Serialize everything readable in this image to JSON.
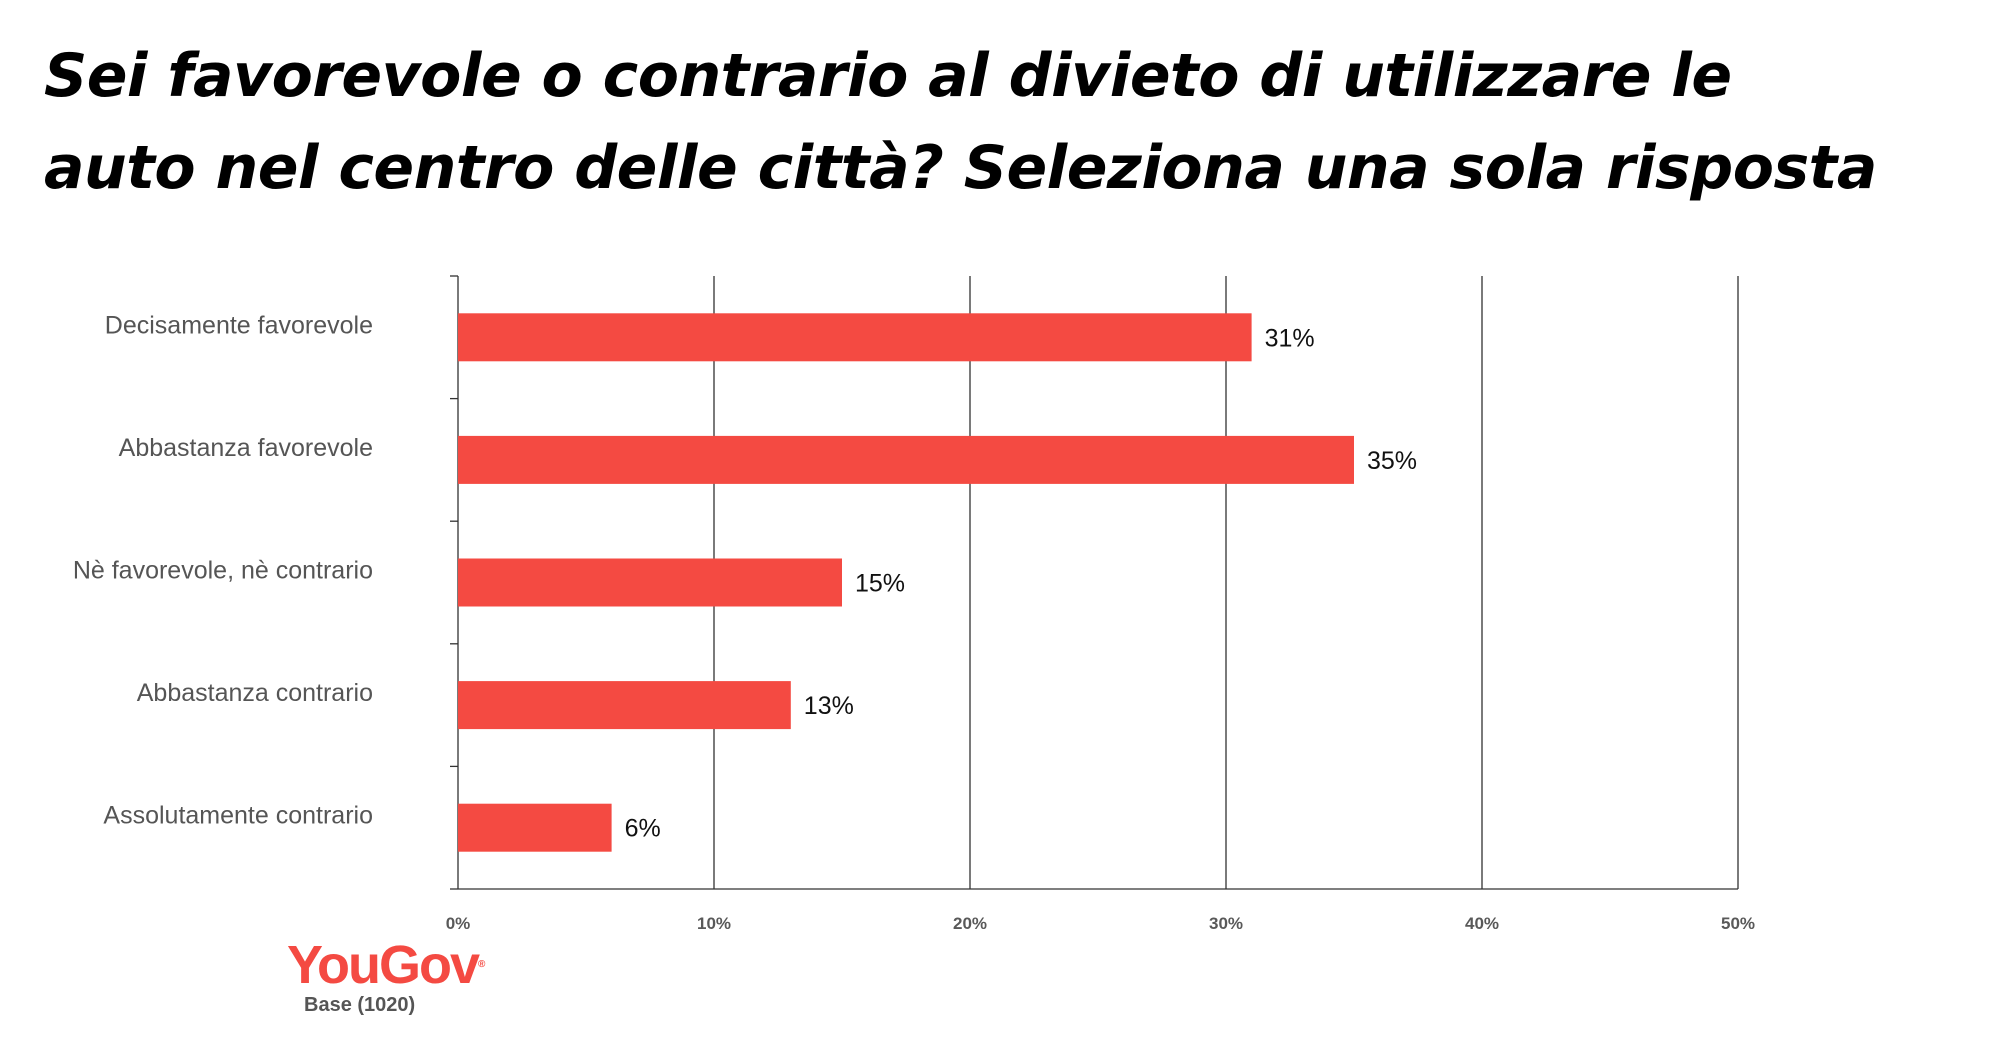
{
  "title_lines": [
    "Sei favorevole o contrario al divieto di utilizzare le",
    "auto nel centro delle città? Seleziona una sola risposta"
  ],
  "brand": {
    "logo_text": "YouGov",
    "base_label": "Base (1020)",
    "color": "#f44a42"
  },
  "chart_data": {
    "type": "bar",
    "orientation": "horizontal",
    "categories": [
      "Decisamente favorevole",
      "Abbastanza favorevole",
      "Nè favorevole, nè contrario",
      "Abbastanza contrario",
      "Assolutamente contrario"
    ],
    "values": [
      31,
      35,
      15,
      13,
      6
    ],
    "data_labels": [
      "31%",
      "35%",
      "15%",
      "13%",
      "6%"
    ],
    "xlim": [
      0,
      50
    ],
    "xticks": [
      0,
      10,
      20,
      30,
      40,
      50
    ],
    "xtick_labels": [
      "0%",
      "10%",
      "20%",
      "30%",
      "40%",
      "50%"
    ],
    "grid": "vertical",
    "bar_color": "#f44a42",
    "grid_color": "#333333",
    "label_color": "#555555"
  }
}
